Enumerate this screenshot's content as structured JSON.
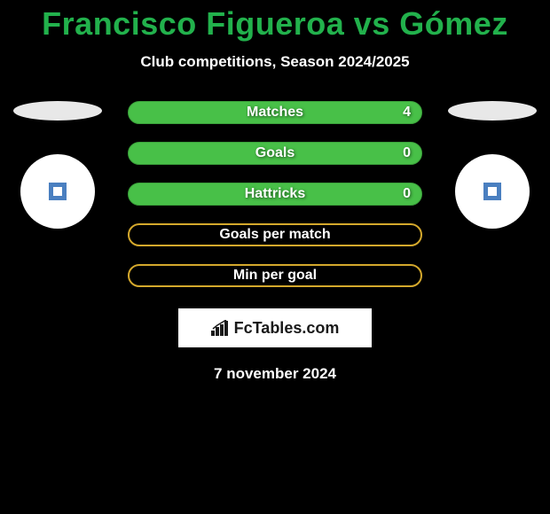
{
  "title": "Francisco Figueroa vs Gómez",
  "subtitle": "Club competitions, Season 2024/2025",
  "date": "7 november 2024",
  "brand": "FcTables.com",
  "colors": {
    "background": "#000000",
    "title": "#22b14c",
    "green_bar": "#48c048",
    "green_border": "#3aa03a",
    "yellow_border": "#d4a82c",
    "white": "#ffffff",
    "club_square": "#4a7fc0"
  },
  "stats": [
    {
      "label": "Matches",
      "value": "4",
      "style": "green",
      "show_value": true
    },
    {
      "label": "Goals",
      "value": "0",
      "style": "green",
      "show_value": true
    },
    {
      "label": "Hattricks",
      "value": "0",
      "style": "green",
      "show_value": true
    },
    {
      "label": "Goals per match",
      "value": "",
      "style": "yellow",
      "show_value": false
    },
    {
      "label": "Min per goal",
      "value": "",
      "style": "yellow",
      "show_value": false
    }
  ]
}
